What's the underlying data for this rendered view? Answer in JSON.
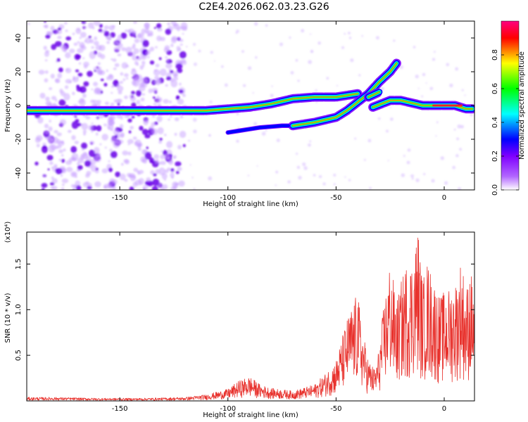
{
  "title": "C2E4.2026.062.03.23.G26",
  "chart_data": [
    {
      "type": "heatmap",
      "name": "spectrogram",
      "xlabel": "Height of straight line (km)",
      "ylabel": "Frequency (Hz)",
      "xlim": [
        -193,
        14
      ],
      "ylim": [
        -50,
        50
      ],
      "xticks": [
        -150,
        -100,
        -50,
        0
      ],
      "yticks": [
        -40,
        -20,
        0,
        20,
        40
      ],
      "noise_region_x": [
        -185,
        -120
      ],
      "traces": [
        {
          "name": "main-trace",
          "points": [
            [
              -193,
              -3
            ],
            [
              -180,
              -3
            ],
            [
              -170,
              -3
            ],
            [
              -155,
              -3
            ],
            [
              -140,
              -3
            ],
            [
              -130,
              -3
            ],
            [
              -120,
              -3
            ],
            [
              -110,
              -3
            ],
            [
              -100,
              -2
            ],
            [
              -90,
              -1
            ],
            [
              -80,
              1
            ],
            [
              -70,
              4
            ],
            [
              -60,
              5
            ],
            [
              -50,
              5
            ],
            [
              -45,
              6
            ],
            [
              -40,
              7
            ]
          ]
        },
        {
          "name": "rising-trace",
          "points": [
            [
              -70,
              -12
            ],
            [
              -60,
              -10
            ],
            [
              -50,
              -7
            ],
            [
              -45,
              -3
            ],
            [
              -40,
              2
            ],
            [
              -35,
              7
            ],
            [
              -30,
              14
            ],
            [
              -25,
              20
            ],
            [
              -22,
              25
            ]
          ]
        },
        {
          "name": "upper-branch",
          "points": [
            [
              -35,
              5
            ],
            [
              -30,
              8
            ]
          ]
        },
        {
          "name": "lower-faint-trace",
          "points": [
            [
              -100,
              -16
            ],
            [
              -95,
              -15
            ],
            [
              -90,
              -14
            ],
            [
              -85,
              -13
            ],
            [
              -75,
              -12
            ],
            [
              -72,
              -12
            ]
          ]
        },
        {
          "name": "right-trace",
          "points": [
            [
              -33,
              -1
            ],
            [
              -25,
              3
            ],
            [
              -20,
              3
            ],
            [
              -10,
              0
            ],
            [
              0,
              0
            ],
            [
              5,
              0
            ],
            [
              10,
              -2
            ],
            [
              13,
              -2
            ]
          ]
        }
      ],
      "colorbar": {
        "label": "Normalized spectral amplitude",
        "ticks": [
          "0.0",
          "0.2",
          "0.4",
          "0.6",
          "0.8"
        ],
        "range": [
          0,
          1
        ],
        "colors": [
          "#ffffff",
          "#7f00ff",
          "#0000ff",
          "#00ffff",
          "#00ff00",
          "#ffff00",
          "#ff0000",
          "#ff007f"
        ]
      }
    },
    {
      "type": "line",
      "name": "snr-plot",
      "xlabel": "Height of straight line (km)",
      "ylabel": "SNR (10 * v/v)",
      "scale_note": "(x10⁴)",
      "xlim": [
        -193,
        14
      ],
      "ylim": [
        0,
        1.85
      ],
      "xticks": [
        -150,
        -100,
        -50,
        0
      ],
      "yticks": [
        "0.5",
        "1.0",
        "1.5"
      ],
      "color": "#e8322d",
      "envelope": {
        "x": [
          -193,
          -180,
          -160,
          -140,
          -120,
          -110,
          -100,
          -95,
          -90,
          -85,
          -80,
          -70,
          -60,
          -55,
          -50,
          -45,
          -42,
          -40,
          -38,
          -35,
          -32,
          -30,
          -28,
          -25,
          -22,
          -20,
          -18,
          -15,
          -13,
          -12,
          -10,
          -8,
          -5,
          -2,
          0,
          3,
          6,
          8,
          10,
          12,
          14
        ],
        "y": [
          0.04,
          0.04,
          0.03,
          0.03,
          0.04,
          0.07,
          0.13,
          0.22,
          0.27,
          0.18,
          0.14,
          0.11,
          0.18,
          0.3,
          0.45,
          0.9,
          1.08,
          1.2,
          0.8,
          0.45,
          0.35,
          0.6,
          1.05,
          1.55,
          1.1,
          1.3,
          1.5,
          1.55,
          1.8,
          1.9,
          1.3,
          1.55,
          1.35,
          1.15,
          1.2,
          1.25,
          1.35,
          1.6,
          1.2,
          1.45,
          1.25
        ]
      }
    }
  ]
}
